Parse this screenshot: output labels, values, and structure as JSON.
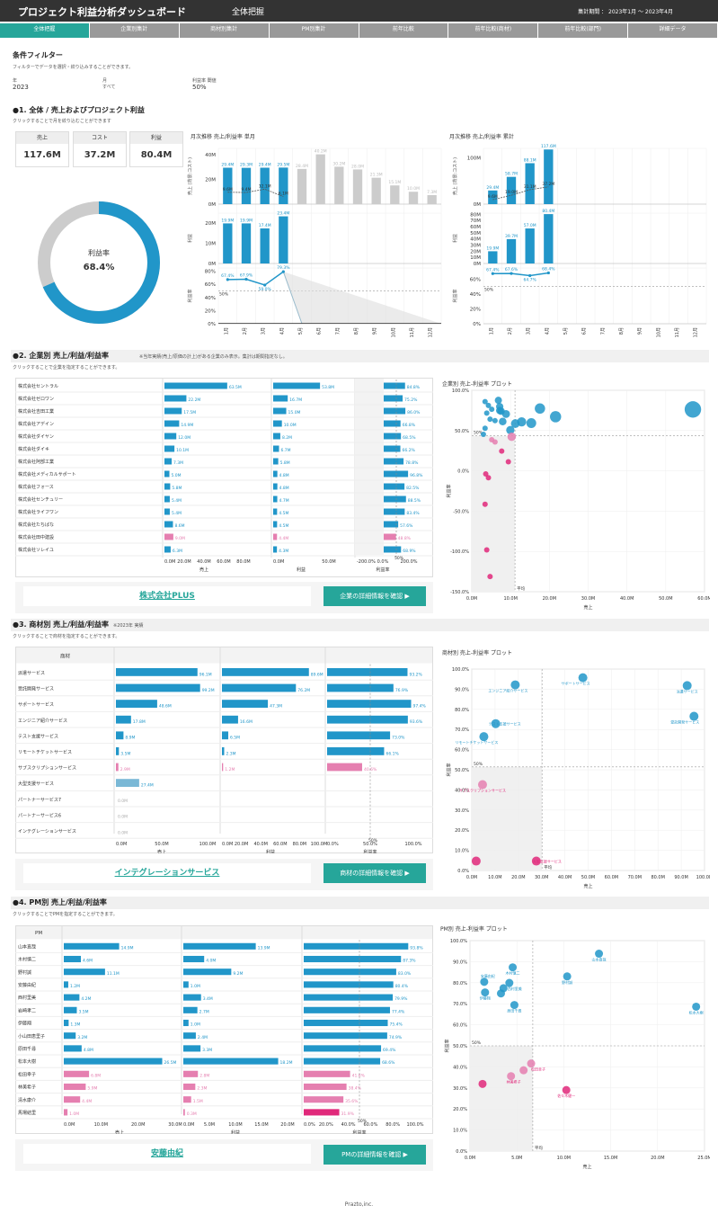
{
  "header": {
    "title": "プロジェクト利益分析ダッシュボード",
    "subtitle": "全体把握",
    "period": "集計期間 ： 2023年1月 〜 2023年4月"
  },
  "tabs": [
    "全体把握",
    "企業別集計",
    "商材別集計",
    "PM別集計",
    "前年比較",
    "前年比較(商材)",
    "前年比較(部門)",
    "詳細データ"
  ],
  "filter": {
    "title": "条件フィルター",
    "note": "フィルターでデータを選択・絞り込みすることができます。",
    "year_label": "年",
    "year_value": "2023",
    "month_label": "月",
    "month_value": "すべて",
    "threshold_label": "利益率 閾値",
    "threshold_value": "50%"
  },
  "sec1": {
    "title": "●1. 全体 / 売上およびプロジェクト利益",
    "note": "クリックすることで月を絞り込むことができます",
    "kpis": [
      {
        "label": "売上",
        "value": "117.6M"
      },
      {
        "label": "コスト",
        "value": "37.2M"
      },
      {
        "label": "利益",
        "value": "80.4M"
      }
    ],
    "donut_label": "利益率",
    "donut_value": "68.4%",
    "donut_ratio": 0.684,
    "monthly_title": "月次推移 売上/利益率 単月",
    "cum_title": "月次推移 売上/利益率 累計",
    "months": [
      "1月",
      "2月",
      "3月",
      "4月",
      "5月",
      "6月",
      "7月",
      "8月",
      "9月",
      "10月",
      "11月",
      "12月"
    ],
    "axis_sales": "売上 (背景:コスト)",
    "axis_profit": "利益",
    "axis_rate": "利益率",
    "monthly_sales": [
      29.4,
      29.3,
      29.4,
      29.5,
      28.4,
      40.2,
      30.2,
      28.0,
      21.3,
      15.1,
      10.0,
      7.3
    ],
    "monthly_sales_labels": [
      "29.4M",
      "29.3M",
      "29.4M",
      "29.5M",
      "28.4M",
      "40.2M",
      "30.2M",
      "28.0M",
      "21.3M",
      "15.1M",
      "10.0M",
      "7.3M"
    ],
    "monthly_cost_labels": [
      "9.6M",
      "9.4M",
      "12.1M",
      "6.1M"
    ],
    "monthly_cost": [
      9.6,
      9.4,
      12.1,
      6.1
    ],
    "monthly_profit": [
      19.9,
      19.9,
      17.4,
      23.4
    ],
    "monthly_profit_labels": [
      "19.9M",
      "19.9M",
      "17.4M",
      "23.4M"
    ],
    "monthly_rate": [
      67.4,
      67.9,
      59.0,
      79.3
    ],
    "monthly_rate_labels": [
      "67.4%",
      "67.9%",
      "59.0%",
      "79.3%"
    ],
    "cum_sales": [
      29.4,
      58.7,
      88.1,
      117.6
    ],
    "cum_sales_labels": [
      "29.4M",
      "58.7M",
      "88.1M",
      "117.6M"
    ],
    "cum_cost": [
      9.6,
      19.0,
      31.1,
      37.2
    ],
    "cum_cost_labels": [
      "9.6M",
      "19.0M",
      "31.1M",
      "37.2M"
    ],
    "cum_profit": [
      19.9,
      39.7,
      57.0,
      80.4
    ],
    "cum_profit_labels": [
      "19.9M",
      "39.7M",
      "57.0M",
      "80.4M"
    ],
    "cum_rate": [
      67.4,
      67.6,
      64.7,
      68.4
    ],
    "cum_rate_labels": [
      "67.4%",
      "67.6%",
      "64.7%",
      "68.4%"
    ],
    "ticks_m_sales": [
      "40M",
      "20M",
      "0M"
    ],
    "ticks_m_profit": [
      "20M",
      "10M",
      "0M"
    ],
    "ticks_rate": [
      "80%",
      "60%",
      "40%",
      "20%",
      "0%"
    ],
    "ticks_c_sales": [
      "100M",
      "0M"
    ],
    "ticks_c_profit": [
      "80M",
      "70M",
      "60M",
      "50M",
      "40M",
      "30M",
      "20M",
      "10M",
      "0M"
    ],
    "ticks_c_rate": [
      "60%",
      "40%",
      "20%",
      "0%"
    ],
    "threshold_label": "50%"
  },
  "sec2": {
    "title": "●2. 企業別 売上/利益/利益率",
    "title_note": "※当年実績(売上/原価の計上)がある企業のみ表示。集計は期間指定なし。",
    "note": "クリックすることで企業を指定することができます。",
    "plot_title": "企業別 売上-利益率 プロット",
    "rows": [
      {
        "name": "株式会社セントラル",
        "sales": 63.5,
        "sales_label": "63.5M",
        "profit": 53.8,
        "profit_label": "53.8M",
        "rate": 84.8,
        "rate_label": "84.8%"
      },
      {
        "name": "株式会社ゼロワン",
        "sales": 22.2,
        "sales_label": "22.2M",
        "profit": 16.7,
        "profit_label": "16.7M",
        "rate": 75.2,
        "rate_label": "75.2%"
      },
      {
        "name": "株式会社吉田工業",
        "sales": 17.5,
        "sales_label": "17.5M",
        "profit": 15.0,
        "profit_label": "15.0M",
        "rate": 86.0,
        "rate_label": "86.0%"
      },
      {
        "name": "株式会社アデイン",
        "sales": 14.9,
        "sales_label": "14.9M",
        "profit": 10.0,
        "profit_label": "10.0M",
        "rate": 66.8,
        "rate_label": "66.8%"
      },
      {
        "name": "株式会社ダイヤン",
        "sales": 12.0,
        "sales_label": "12.0M",
        "profit": 8.2,
        "profit_label": "8.2M",
        "rate": 68.5,
        "rate_label": "68.5%"
      },
      {
        "name": "株式会社ダイキ",
        "sales": 10.1,
        "sales_label": "10.1M",
        "profit": 6.7,
        "profit_label": "6.7M",
        "rate": 66.2,
        "rate_label": "66.2%"
      },
      {
        "name": "株式会社阿部工業",
        "sales": 7.3,
        "sales_label": "7.3M",
        "profit": 5.8,
        "profit_label": "5.8M",
        "rate": 78.8,
        "rate_label": "78.8%"
      },
      {
        "name": "株式会社メディカルサポート",
        "sales": 5.0,
        "sales_label": "5.0M",
        "profit": 4.8,
        "profit_label": "4.8M",
        "rate": 96.8,
        "rate_label": "96.8%"
      },
      {
        "name": "株式会社フォース",
        "sales": 5.8,
        "sales_label": "5.8M",
        "profit": 4.8,
        "profit_label": "4.8M",
        "rate": 82.5,
        "rate_label": "82.5%"
      },
      {
        "name": "株式会社センチュリー",
        "sales": 5.4,
        "sales_label": "5.4M",
        "profit": 4.7,
        "profit_label": "4.7M",
        "rate": 88.5,
        "rate_label": "88.5%"
      },
      {
        "name": "株式会社ライフワン",
        "sales": 5.4,
        "sales_label": "5.4M",
        "profit": 4.5,
        "profit_label": "4.5M",
        "rate": 83.4,
        "rate_label": "83.4%"
      },
      {
        "name": "株式会社たちばな",
        "sales": 8.6,
        "sales_label": "8.6M",
        "profit": 4.5,
        "profit_label": "4.5M",
        "rate": 57.6,
        "rate_label": "57.6%"
      },
      {
        "name": "株式会社田中建設",
        "sales": 9.0,
        "sales_label": "9.0M",
        "profit": 4.4,
        "profit_label": "4.4M",
        "rate": 48.8,
        "rate_label": "48.8%"
      },
      {
        "name": "株式会社ソレイユ",
        "sales": 6.3,
        "sales_label": "6.3M",
        "profit": 4.3,
        "profit_label": "4.3M",
        "rate": 68.9,
        "rate_label": "68.9%"
      }
    ],
    "axis_sales": [
      "0.0M",
      "20.0M",
      "40.0M",
      "60.0M",
      "80.0M"
    ],
    "axis_sales_label": "売上",
    "axis_profit": [
      "0.0M",
      "50.0M"
    ],
    "axis_profit_label": "利益",
    "axis_rate": [
      "-200.0%",
      "0.0%",
      "200.0%"
    ],
    "axis_rate_label": "利益率",
    "rate_threshold": "50%",
    "plot_y_ticks": [
      "100.0%",
      "50.0%",
      "0.0%",
      "-50.0%",
      "-100.0%",
      "-150.0%"
    ],
    "plot_x_ticks": [
      "0.0M",
      "10.0M",
      "20.0M",
      "30.0M",
      "40.0M",
      "50.0M",
      "60.0M"
    ],
    "plot_x_label": "売上",
    "plot_y_label": "利益率",
    "plot_avg": "平均",
    "plot_50": "50%",
    "selected": "株式会社PLUS",
    "button": "企業の詳細情報を確認 ▶"
  },
  "sec3": {
    "title": "●3. 商材別 売上/利益/利益率",
    "title_note": "※2023年 実績",
    "note": "クリックすることで商材を指定することができます。",
    "header": "商材",
    "plot_title": "商材別 売上-利益率 プロット",
    "rows": [
      {
        "name": "派遣サービス",
        "sales": 96.1,
        "sales_label": "96.1M",
        "profit": 89.6,
        "profit_label": "89.6M",
        "rate": 93.2,
        "rate_label": "93.2%"
      },
      {
        "name": "受託開発サービス",
        "sales": 99.2,
        "sales_label": "99.2M",
        "profit": 76.2,
        "profit_label": "76.2M",
        "rate": 76.9,
        "rate_label": "76.9%"
      },
      {
        "name": "サポートサービス",
        "sales": 48.6,
        "sales_label": "48.6M",
        "profit": 47.3,
        "profit_label": "47.3M",
        "rate": 97.4,
        "rate_label": "97.4%"
      },
      {
        "name": "エンジニア紹介サービス",
        "sales": 17.8,
        "sales_label": "17.8M",
        "profit": 16.6,
        "profit_label": "16.6M",
        "rate": 93.6,
        "rate_label": "93.6%"
      },
      {
        "name": "テスト支援サービス",
        "sales": 8.9,
        "sales_label": "8.9M",
        "profit": 6.5,
        "profit_label": "6.5M",
        "rate": 73.0,
        "rate_label": "73.0%"
      },
      {
        "name": "リモートチケットサービス",
        "sales": 3.5,
        "sales_label": "3.5M",
        "profit": 2.3,
        "profit_label": "2.3M",
        "rate": 66.1,
        "rate_label": "66.1%"
      },
      {
        "name": "サブスクリプションサービス",
        "sales": 2.9,
        "sales_label": "2.9M",
        "profit": 1.2,
        "profit_label": "1.2M",
        "rate": 40.6,
        "rate_label": "40.6%"
      },
      {
        "name": "大型支援サービス",
        "sales": 27.4,
        "sales_label": "27.4M",
        "profit": 0,
        "profit_label": "",
        "rate": 0,
        "rate_label": ""
      },
      {
        "name": "パートナーサービス7",
        "sales": 0,
        "sales_label": "0.0M",
        "profit": 0,
        "profit_label": "",
        "rate": 0,
        "rate_label": ""
      },
      {
        "name": "パートナーサービス6",
        "sales": 0,
        "sales_label": "0.0M",
        "profit": 0,
        "profit_label": "",
        "rate": 0,
        "rate_label": ""
      },
      {
        "name": "インテグレーションサービス",
        "sales": 0,
        "sales_label": "0.0M",
        "profit": 0,
        "profit_label": "",
        "rate": 0,
        "rate_label": ""
      }
    ],
    "axis_sales": [
      "0.0M",
      "50.0M",
      "100.0M"
    ],
    "axis_profit": [
      "0.0M",
      "20.0M",
      "40.0M",
      "60.0M",
      "80.0M",
      "100.0M"
    ],
    "axis_rate": [
      "0.0%",
      "50.0%",
      "100.0%"
    ],
    "axis_sales_label": "売上",
    "axis_profit_label": "利益",
    "axis_rate_label": "利益率",
    "rate_threshold": "50%",
    "plot_y_ticks": [
      "100.0%",
      "90.0%",
      "80.0%",
      "70.0%",
      "60.0%",
      "50.0%",
      "40.0%",
      "30.0%",
      "20.0%",
      "10.0%",
      "0.0%"
    ],
    "plot_x_ticks": [
      "0.0M",
      "10.0M",
      "20.0M",
      "30.0M",
      "40.0M",
      "50.0M",
      "60.0M",
      "70.0M",
      "80.0M",
      "90.0M",
      "100.0M"
    ],
    "plot_x_label": "売上",
    "plot_y_label": "利益率",
    "plot_avg": "平均",
    "plot_50": "50%",
    "plot_labels": [
      "派遣サービス",
      "受託開発サービス",
      "サポートサービス",
      "エンジニア紹介サービス",
      "テスト支援サービス",
      "リモートチケットサービス",
      "サブスクリプションサービス",
      "大型支援サービス"
    ],
    "selected": "インテグレーションサービス",
    "button": "商材の詳細情報を確認 ▶"
  },
  "sec4": {
    "title": "●4. PM別 売上/利益/利益率",
    "note": "クリックすることでPMを指定することができます。",
    "header": "PM",
    "plot_title": "PM別 売上-利益率 プロット",
    "rows": [
      {
        "name": "山本直哉",
        "sales": 14.9,
        "sales_label": "14.9M",
        "profit": 13.9,
        "profit_label": "13.9M",
        "rate": 93.8,
        "rate_label": "93.8%"
      },
      {
        "name": "木村慎二",
        "sales": 4.6,
        "sales_label": "4.6M",
        "profit": 4.0,
        "profit_label": "4.0M",
        "rate": 87.3,
        "rate_label": "87.3%"
      },
      {
        "name": "野村誠",
        "sales": 11.1,
        "sales_label": "11.1M",
        "profit": 9.2,
        "profit_label": "9.2M",
        "rate": 83.0,
        "rate_label": "83.0%"
      },
      {
        "name": "安藤由紀",
        "sales": 1.2,
        "sales_label": "1.2M",
        "profit": 1.0,
        "profit_label": "1.0M",
        "rate": 80.4,
        "rate_label": "80.4%"
      },
      {
        "name": "西村里美",
        "sales": 4.2,
        "sales_label": "4.2M",
        "profit": 3.4,
        "profit_label": "3.4M",
        "rate": 79.9,
        "rate_label": "79.9%"
      },
      {
        "name": "岩崎孝二",
        "sales": 3.5,
        "sales_label": "3.5M",
        "profit": 2.7,
        "profit_label": "2.7M",
        "rate": 77.4,
        "rate_label": "77.4%"
      },
      {
        "name": "伊藤翔",
        "sales": 1.3,
        "sales_label": "1.3M",
        "profit": 1.0,
        "profit_label": "1.0M",
        "rate": 75.4,
        "rate_label": "75.4%"
      },
      {
        "name": "小山田恵里子",
        "sales": 3.2,
        "sales_label": "3.2M",
        "profit": 2.4,
        "profit_label": "2.4M",
        "rate": 74.9,
        "rate_label": "74.9%"
      },
      {
        "name": "原田千尋",
        "sales": 4.8,
        "sales_label": "4.8M",
        "profit": 3.3,
        "profit_label": "3.3M",
        "rate": 69.4,
        "rate_label": "69.4%"
      },
      {
        "name": "松本大樹",
        "sales": 26.5,
        "sales_label": "26.5M",
        "profit": 18.2,
        "profit_label": "18.2M",
        "rate": 68.6,
        "rate_label": "68.6%"
      },
      {
        "name": "松田幸子",
        "sales": 6.8,
        "sales_label": "6.8M",
        "profit": 2.8,
        "profit_label": "2.8M",
        "rate": 41.6,
        "rate_label": "41.6%"
      },
      {
        "name": "林美希子",
        "sales": 5.9,
        "sales_label": "5.9M",
        "profit": 2.3,
        "profit_label": "2.3M",
        "rate": 38.4,
        "rate_label": "38.4%"
      },
      {
        "name": "清水康介",
        "sales": 4.4,
        "sales_label": "4.4M",
        "profit": 1.5,
        "profit_label": "1.5M",
        "rate": 35.6,
        "rate_label": "35.6%"
      },
      {
        "name": "馬場結里",
        "sales": 1.0,
        "sales_label": "1.0M",
        "profit": 0.3,
        "profit_label": "0.3M",
        "rate": 31.9,
        "rate_label": "31.9%"
      }
    ],
    "axis_sales": [
      "0.0M",
      "10.0M",
      "20.0M",
      "30.0M"
    ],
    "axis_profit": [
      "0.0M",
      "5.0M",
      "10.0M",
      "15.0M",
      "20.0M"
    ],
    "axis_rate": [
      "0.0%",
      "20.0%",
      "40.0%",
      "60.0%",
      "80.0%",
      "100.0%"
    ],
    "axis_sales_label": "売上",
    "axis_profit_label": "利益",
    "axis_rate_label": "利益率",
    "rate_threshold": "50%",
    "plot_y_ticks": [
      "100.0%",
      "90.0%",
      "80.0%",
      "70.0%",
      "60.0%",
      "50.0%",
      "40.0%",
      "30.0%",
      "20.0%",
      "10.0%",
      "0.0%"
    ],
    "plot_x_ticks": [
      "0.0M",
      "5.0M",
      "10.0M",
      "15.0M",
      "20.0M",
      "25.0M"
    ],
    "plot_x_label": "売上",
    "plot_y_label": "利益率",
    "plot_avg": "平均",
    "plot_50": "50%",
    "plot_labels": [
      "山本直哉",
      "木村慎二",
      "野村誠",
      "安藤由紀",
      "西村里美",
      "岩崎孝二",
      "伊藤翔",
      "原田千尋",
      "松本大樹",
      "松田幸子",
      "林美希子",
      "清水康介",
      "佐々木健一"
    ],
    "selected": "安藤由紀",
    "button": "PMの詳細情報を確認 ▶"
  },
  "footer": "Prazto,inc.",
  "colors": {
    "accent": "#26a69a",
    "blue": "#2196c9",
    "pink": "#e0287a",
    "lightpink": "#e57fb0",
    "gray": "#cccccc"
  }
}
